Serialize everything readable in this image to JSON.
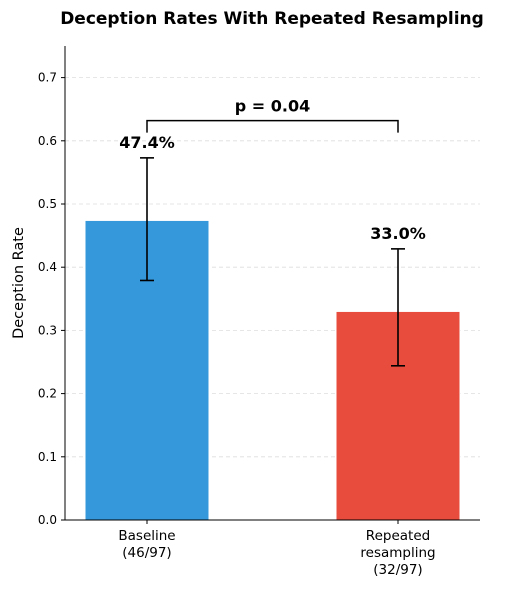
{
  "chart_data": {
    "type": "bar",
    "title": "Deception Rates With Repeated Resampling",
    "ylabel": "Deception Rate",
    "xlabel": "",
    "ylim": [
      0,
      0.75
    ],
    "yticks": [
      0.0,
      0.1,
      0.2,
      0.3,
      0.4,
      0.5,
      0.6,
      0.7
    ],
    "grid": "y-dashed",
    "categories": [
      [
        "Baseline",
        "(46/97)"
      ],
      [
        "Repeated",
        "resampling",
        "(32/97)"
      ]
    ],
    "values": [
      0.474,
      0.33
    ],
    "error_low": [
      0.379,
      0.244
    ],
    "error_high": [
      0.573,
      0.429
    ],
    "data_labels": [
      "47.4%",
      "33.0%"
    ],
    "colors": [
      "#3498db",
      "#e74c3c"
    ],
    "annotation": {
      "text": "p = 0.04",
      "between": [
        0,
        1
      ]
    }
  }
}
